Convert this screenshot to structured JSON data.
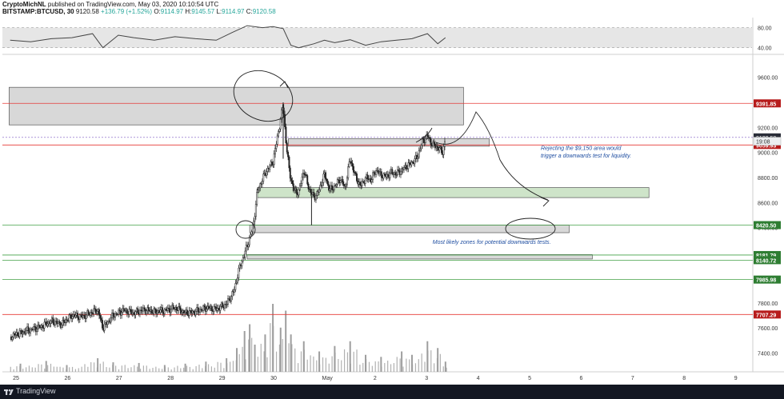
{
  "header": {
    "publisher": "CryptoMichNL",
    "published_text": "published on TradingView.com, May 03, 2020 10:10:54 UTC",
    "symbol": "BITSTAMP:BTCUSD, 30",
    "last": "9120.58",
    "change": "+136.79 (+1.52%)",
    "o_label": "O:",
    "o_value": "9114.97",
    "h_label": "H:",
    "h_value": "9145.57",
    "l_label": "L:",
    "l_value": "9114.97",
    "c_label": "C:",
    "c_value": "9120.58"
  },
  "footer": {
    "brand": "TradingView"
  },
  "colors": {
    "candle": "#222222",
    "volume": "#9e9e9e",
    "red_line": "#e53935",
    "green_line": "#43a047",
    "grey_zone": "#c8c8c8",
    "green_zone": "#c5dfc0",
    "annotation": "#1f4ea1",
    "dark_label": "#2a2e39",
    "red_label": "#b71c1c",
    "green_label": "#2e7d32",
    "rsi_band": "#e6e6e6"
  },
  "chart_data": {
    "type": "candlestick",
    "symbol": "BITSTAMP:BTCUSD",
    "timeframe": "30",
    "ylim": [
      7250,
      9770
    ],
    "y_ticks": [
      7400,
      7600,
      7800,
      8000,
      8200,
      8400,
      8600,
      8800,
      9000,
      9200,
      9400,
      9600
    ],
    "y_tick_labels": [
      "7400.00",
      "7600.00",
      "7800.00",
      "8000.00",
      "8200.00",
      "8400.00",
      "8600.00",
      "8800.00",
      "9000.00",
      "9200.00",
      "9400.00",
      "9600.00"
    ],
    "x_labels": [
      "25",
      "26",
      "27",
      "28",
      "29",
      "30",
      "May",
      "2",
      "3",
      "4",
      "5",
      "6",
      "7",
      "8",
      "9"
    ],
    "close_path": [
      {
        "d": 24.9,
        "v": 7530
      },
      {
        "d": 25.2,
        "v": 7575
      },
      {
        "d": 25.5,
        "v": 7610
      },
      {
        "d": 25.7,
        "v": 7655
      },
      {
        "d": 25.9,
        "v": 7630
      },
      {
        "d": 26.1,
        "v": 7700
      },
      {
        "d": 26.3,
        "v": 7690
      },
      {
        "d": 26.6,
        "v": 7745
      },
      {
        "d": 26.7,
        "v": 7600
      },
      {
        "d": 26.9,
        "v": 7700
      },
      {
        "d": 27.1,
        "v": 7740
      },
      {
        "d": 27.3,
        "v": 7720
      },
      {
        "d": 27.5,
        "v": 7745
      },
      {
        "d": 27.7,
        "v": 7730
      },
      {
        "d": 27.9,
        "v": 7740
      },
      {
        "d": 28.1,
        "v": 7760
      },
      {
        "d": 28.3,
        "v": 7720
      },
      {
        "d": 28.5,
        "v": 7730
      },
      {
        "d": 28.7,
        "v": 7760
      },
      {
        "d": 28.9,
        "v": 7750
      },
      {
        "d": 29.1,
        "v": 7790
      },
      {
        "d": 29.25,
        "v": 7900
      },
      {
        "d": 29.35,
        "v": 8080
      },
      {
        "d": 29.45,
        "v": 8190
      },
      {
        "d": 29.55,
        "v": 8320
      },
      {
        "d": 29.62,
        "v": 8420
      },
      {
        "d": 29.7,
        "v": 8690
      },
      {
        "d": 29.8,
        "v": 8790
      },
      {
        "d": 29.9,
        "v": 8870
      },
      {
        "d": 30.0,
        "v": 8920
      },
      {
        "d": 30.1,
        "v": 9150
      },
      {
        "d": 30.2,
        "v": 9380
      },
      {
        "d": 30.25,
        "v": 9100
      },
      {
        "d": 30.32,
        "v": 8850
      },
      {
        "d": 30.4,
        "v": 8700
      },
      {
        "d": 30.5,
        "v": 8680
      },
      {
        "d": 30.6,
        "v": 8860
      },
      {
        "d": 30.7,
        "v": 8710
      },
      {
        "d": 30.8,
        "v": 8640
      },
      {
        "d": 30.9,
        "v": 8700
      },
      {
        "d": 31.0,
        "v": 8830
      },
      {
        "d": 31.1,
        "v": 8700
      },
      {
        "d": 31.2,
        "v": 8730
      },
      {
        "d": 31.3,
        "v": 8790
      },
      {
        "d": 31.4,
        "v": 8720
      },
      {
        "d": 31.5,
        "v": 8950
      },
      {
        "d": 31.6,
        "v": 8810
      },
      {
        "d": 31.7,
        "v": 8730
      },
      {
        "d": 31.8,
        "v": 8800
      },
      {
        "d": 31.9,
        "v": 8780
      },
      {
        "d": 32.0,
        "v": 8860
      },
      {
        "d": 32.1,
        "v": 8820
      },
      {
        "d": 32.2,
        "v": 8810
      },
      {
        "d": 32.3,
        "v": 8840
      },
      {
        "d": 32.4,
        "v": 8830
      },
      {
        "d": 32.5,
        "v": 8860
      },
      {
        "d": 32.6,
        "v": 8890
      },
      {
        "d": 32.7,
        "v": 8920
      },
      {
        "d": 32.8,
        "v": 8960
      },
      {
        "d": 32.9,
        "v": 9090
      },
      {
        "d": 33.0,
        "v": 9130
      },
      {
        "d": 33.1,
        "v": 9060
      },
      {
        "d": 33.2,
        "v": 9040
      },
      {
        "d": 33.3,
        "v": 9000
      },
      {
        "d": 33.35,
        "v": 9120
      }
    ],
    "rsi": {
      "ylim": [
        30,
        100
      ],
      "levels": [
        40,
        80
      ],
      "level_labels": [
        "40.00",
        "80.00"
      ],
      "path": [
        {
          "d": 24.9,
          "v": 55
        },
        {
          "d": 25.3,
          "v": 52
        },
        {
          "d": 25.7,
          "v": 58
        },
        {
          "d": 26.1,
          "v": 60
        },
        {
          "d": 26.5,
          "v": 68
        },
        {
          "d": 26.7,
          "v": 40
        },
        {
          "d": 27.0,
          "v": 65
        },
        {
          "d": 27.3,
          "v": 60
        },
        {
          "d": 27.7,
          "v": 55
        },
        {
          "d": 28.1,
          "v": 62
        },
        {
          "d": 28.5,
          "v": 58
        },
        {
          "d": 28.9,
          "v": 55
        },
        {
          "d": 29.2,
          "v": 70
        },
        {
          "d": 29.5,
          "v": 84
        },
        {
          "d": 29.8,
          "v": 80
        },
        {
          "d": 30.0,
          "v": 82
        },
        {
          "d": 30.2,
          "v": 78
        },
        {
          "d": 30.35,
          "v": 45
        },
        {
          "d": 30.5,
          "v": 40
        },
        {
          "d": 30.8,
          "v": 48
        },
        {
          "d": 31.0,
          "v": 55
        },
        {
          "d": 31.2,
          "v": 50
        },
        {
          "d": 31.5,
          "v": 56
        },
        {
          "d": 31.8,
          "v": 45
        },
        {
          "d": 32.1,
          "v": 52
        },
        {
          "d": 32.4,
          "v": 55
        },
        {
          "d": 32.7,
          "v": 58
        },
        {
          "d": 33.0,
          "v": 68
        },
        {
          "d": 33.2,
          "v": 48
        },
        {
          "d": 33.35,
          "v": 60
        }
      ]
    },
    "volume": [
      {
        "d": 25.1,
        "v": 12
      },
      {
        "d": 25.6,
        "v": 16
      },
      {
        "d": 26.0,
        "v": 10
      },
      {
        "d": 26.6,
        "v": 20
      },
      {
        "d": 26.9,
        "v": 14
      },
      {
        "d": 27.4,
        "v": 13
      },
      {
        "d": 27.9,
        "v": 10
      },
      {
        "d": 28.3,
        "v": 12
      },
      {
        "d": 28.7,
        "v": 15
      },
      {
        "d": 29.1,
        "v": 20
      },
      {
        "d": 29.3,
        "v": 35
      },
      {
        "d": 29.45,
        "v": 60
      },
      {
        "d": 29.55,
        "v": 70
      },
      {
        "d": 29.65,
        "v": 40
      },
      {
        "d": 29.85,
        "v": 55
      },
      {
        "d": 30.0,
        "v": 100
      },
      {
        "d": 30.15,
        "v": 65
      },
      {
        "d": 30.25,
        "v": 90
      },
      {
        "d": 30.35,
        "v": 55
      },
      {
        "d": 30.6,
        "v": 45
      },
      {
        "d": 30.9,
        "v": 30
      },
      {
        "d": 31.2,
        "v": 38
      },
      {
        "d": 31.5,
        "v": 45
      },
      {
        "d": 31.8,
        "v": 25
      },
      {
        "d": 32.1,
        "v": 22
      },
      {
        "d": 32.5,
        "v": 30
      },
      {
        "d": 32.7,
        "v": 25
      },
      {
        "d": 33.0,
        "v": 45
      },
      {
        "d": 33.2,
        "v": 35
      },
      {
        "d": 33.35,
        "v": 15
      }
    ],
    "horizontal_lines": [
      {
        "value": 9391.85,
        "color": "red",
        "label": "9391.85"
      },
      {
        "value": 9059.93,
        "color": "red",
        "label": "9059.93"
      },
      {
        "value": 8420.5,
        "color": "green",
        "label": "8420.50"
      },
      {
        "value": 8181.79,
        "color": "green",
        "label": "8181.79"
      },
      {
        "value": 8140.72,
        "color": "green",
        "label": "8140.72"
      },
      {
        "value": 7985.98,
        "color": "green",
        "label": "7985.98"
      },
      {
        "value": 7707.29,
        "color": "red",
        "label": "7707.29"
      }
    ],
    "price_labels": [
      {
        "value": 9120.58,
        "label": "9120.58",
        "style": "dark"
      },
      {
        "value": 9090,
        "label": "19:08",
        "style": "light"
      }
    ],
    "zones": [
      {
        "kind": "grey",
        "x0": 24.88,
        "x1": 33.7,
        "y0": 9220,
        "y1": 9520
      },
      {
        "kind": "grey",
        "x0": 30.3,
        "x1": 34.2,
        "y0": 9050,
        "y1": 9110
      },
      {
        "kind": "green",
        "x0": 29.7,
        "x1": 37.3,
        "y0": 8640,
        "y1": 8720
      },
      {
        "kind": "grey",
        "x0": 29.55,
        "x1": 35.75,
        "y0": 8360,
        "y1": 8420
      },
      {
        "kind": "grey",
        "x0": 29.5,
        "x1": 36.2,
        "y0": 8150,
        "y1": 8185
      }
    ],
    "annotations": [
      {
        "text": "Rejecting the $9,150 area would",
        "x": 35.2,
        "y": 9020
      },
      {
        "text": "trigger a downwards test for liquidity.",
        "x": 35.2,
        "y": 8960
      },
      {
        "text": "Most likely zones for potential downwards tests.",
        "x": 33.1,
        "y": 8270
      }
    ]
  }
}
